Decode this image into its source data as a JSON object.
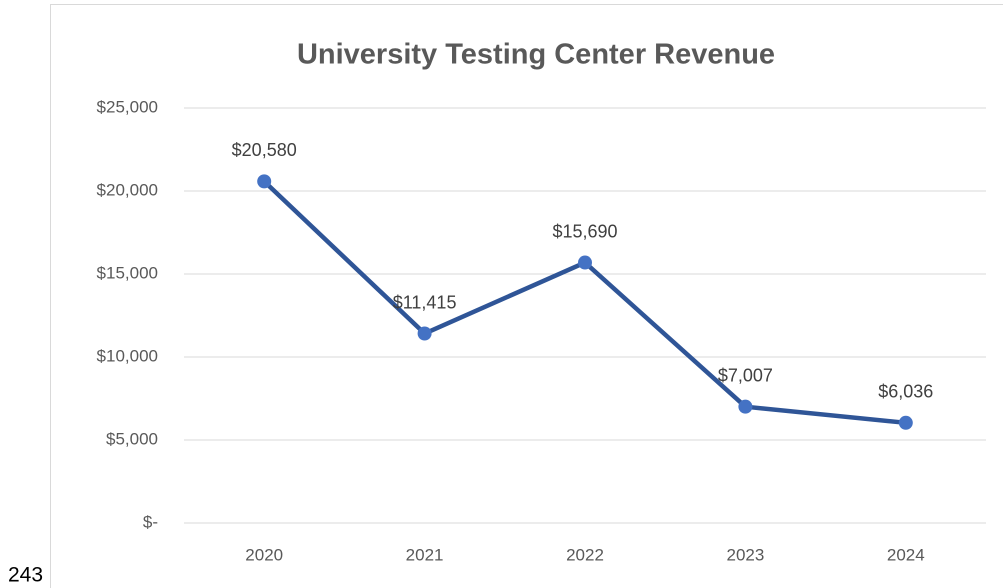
{
  "page_number": "243",
  "chart_data": {
    "type": "line",
    "title": "University Testing Center Revenue",
    "categories": [
      "2020",
      "2021",
      "2022",
      "2023",
      "2024"
    ],
    "values": [
      20580,
      11415,
      15690,
      7007,
      6036
    ],
    "value_labels": [
      "$20,580",
      "$11,415",
      "$15,690",
      "$7,007",
      "$6,036"
    ],
    "color": "#2f5597",
    "marker_color": "#4472c4",
    "ylim": [
      0,
      25000
    ],
    "yticks": [
      {
        "value": 0,
        "label": "$-"
      },
      {
        "value": 5000,
        "label": "$5,000"
      },
      {
        "value": 10000,
        "label": "$10,000"
      },
      {
        "value": 15000,
        "label": "$15,000"
      },
      {
        "value": 20000,
        "label": "$20,000"
      },
      {
        "value": 25000,
        "label": "$25,000"
      }
    ],
    "grid": true
  }
}
